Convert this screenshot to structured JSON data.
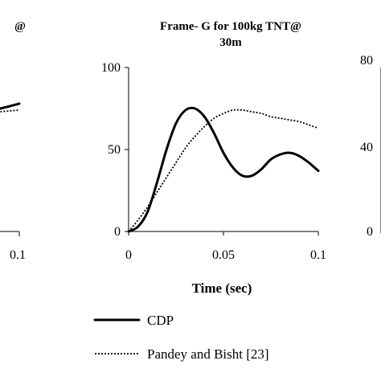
{
  "chart_data": [
    {
      "type": "line",
      "panel": "left (cropped)",
      "title": "@",
      "x_tick_labels": [
        "0.1"
      ],
      "series": [
        {
          "style": "solid",
          "x": [
            0.08,
            0.09,
            0.1
          ],
          "y": [
            73,
            75,
            78
          ]
        },
        {
          "style": "dotted",
          "x": [
            0.08,
            0.09,
            0.1
          ],
          "y": [
            71,
            73,
            74
          ]
        }
      ]
    },
    {
      "type": "line",
      "panel": "middle",
      "title": "Frame- G for 100kg TNT@",
      "subtitle": "30m",
      "xlabel": "Time (sec)",
      "ylabel": "",
      "xlim": [
        0,
        0.1
      ],
      "ylim": [
        0,
        100
      ],
      "x_ticks": [
        0,
        0.05,
        0.1
      ],
      "x_tick_labels": [
        "0",
        "0.05",
        "0.1"
      ],
      "y_ticks": [
        0,
        50,
        100
      ],
      "y_tick_labels": [
        "0",
        "50",
        "100"
      ],
      "grid": false,
      "series": [
        {
          "name": "CDP",
          "style": "solid",
          "x": [
            0,
            0.005,
            0.01,
            0.015,
            0.02,
            0.025,
            0.03,
            0.035,
            0.04,
            0.045,
            0.05,
            0.055,
            0.06,
            0.065,
            0.07,
            0.075,
            0.08,
            0.085,
            0.09,
            0.095,
            0.1
          ],
          "y": [
            0,
            3,
            12,
            30,
            50,
            66,
            74,
            75,
            70,
            60,
            48,
            39,
            34,
            34,
            38,
            44,
            47,
            48,
            46,
            42,
            37
          ]
        },
        {
          "name": "Pandey and Bisht [23]",
          "style": "dotted",
          "x": [
            0,
            0.005,
            0.01,
            0.015,
            0.02,
            0.025,
            0.03,
            0.035,
            0.04,
            0.045,
            0.05,
            0.055,
            0.06,
            0.065,
            0.07,
            0.075,
            0.08,
            0.085,
            0.09,
            0.095,
            0.1
          ],
          "y": [
            0,
            7,
            15,
            24,
            33,
            42,
            51,
            58,
            64,
            69,
            72,
            74,
            74,
            73,
            72,
            70,
            69,
            68,
            67,
            65,
            63
          ]
        }
      ]
    },
    {
      "type": "line",
      "panel": "right (cropped)",
      "y_tick_labels": [
        "0",
        "40",
        "80"
      ]
    }
  ],
  "legend": {
    "placement": "bottom-center",
    "entries": [
      {
        "label": "CDP",
        "style": "solid"
      },
      {
        "label": "Pandey and Bisht [23]",
        "style": "dotted"
      }
    ]
  }
}
